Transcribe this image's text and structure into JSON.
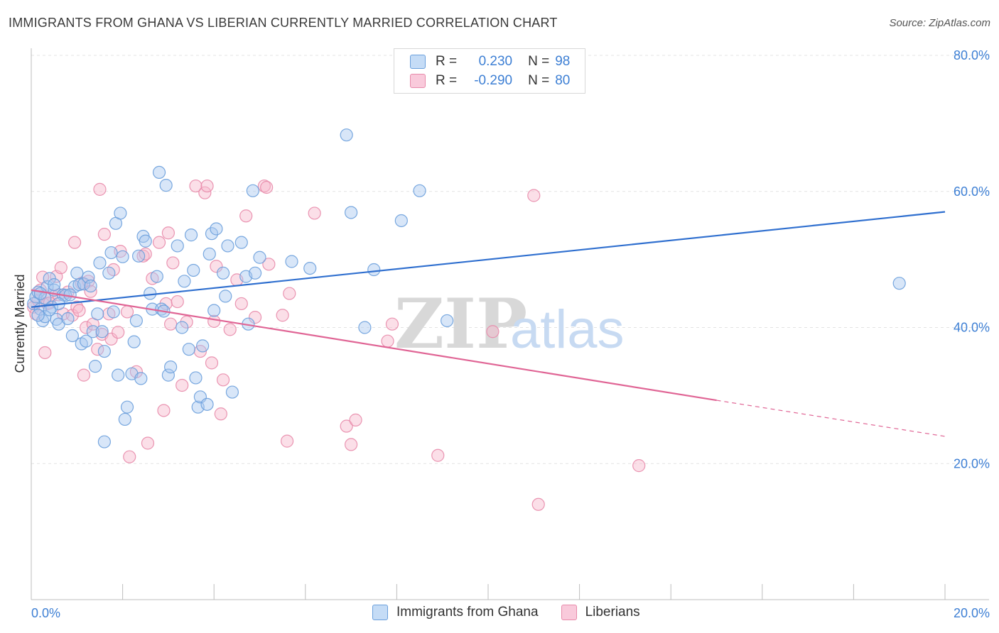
{
  "header": {
    "title": "IMMIGRANTS FROM GHANA VS LIBERIAN CURRENTLY MARRIED CORRELATION CHART",
    "source": "Source: ZipAtlas.com"
  },
  "watermark": {
    "zip": "ZIP",
    "atlas": "atlas"
  },
  "legend": {
    "rows": [
      {
        "r_label": "R =",
        "r_value": "0.230",
        "n_label": "N =",
        "n_value": "98"
      },
      {
        "r_label": "R =",
        "r_value": "-0.290",
        "n_label": "N =",
        "n_value": "80"
      }
    ]
  },
  "bottom_legend": {
    "series1": "Immigrants from Ghana",
    "series2": "Liberians"
  },
  "colors": {
    "ghana_fill": "#a9c8f0",
    "ghana_stroke": "#6a9fdc",
    "ghana_line": "#2f6fcf",
    "lib_fill": "#f6b8cc",
    "lib_stroke": "#e88aaa",
    "lib_line": "#e06595",
    "tick_text": "#3d7fd4",
    "grid": "#e3e3e3"
  },
  "chart_data": {
    "type": "scatter",
    "title": "IMMIGRANTS FROM GHANA VS LIBERIAN CURRENTLY MARRIED CORRELATION CHART",
    "xlabel": "",
    "ylabel": "Currently Married",
    "xlim": [
      0,
      20
    ],
    "ylim": [
      0,
      80
    ],
    "x_ticks": [
      "0.0%",
      "20.0%"
    ],
    "y_ticks": [
      "20.0%",
      "40.0%",
      "60.0%",
      "80.0%"
    ],
    "grid": true,
    "series": [
      {
        "name": "Immigrants from Ghana",
        "trend": {
          "x0": 0,
          "y0": 43.0,
          "x1": 20,
          "y1": 57.0
        },
        "points": [
          [
            0.05,
            43.5
          ],
          [
            0.1,
            44.5
          ],
          [
            0.15,
            45.2
          ],
          [
            0.2,
            42.7
          ],
          [
            0.25,
            41.0
          ],
          [
            0.3,
            44.3
          ],
          [
            0.35,
            46.0
          ],
          [
            0.4,
            47.2
          ],
          [
            0.45,
            43.0
          ],
          [
            0.5,
            45.5
          ],
          [
            0.55,
            41.2
          ],
          [
            0.6,
            40.5
          ],
          [
            0.7,
            44.8
          ],
          [
            0.75,
            44.7
          ],
          [
            0.8,
            41.3
          ],
          [
            0.9,
            38.8
          ],
          [
            0.95,
            46.0
          ],
          [
            1.0,
            48.0
          ],
          [
            1.05,
            46.3
          ],
          [
            1.1,
            37.6
          ],
          [
            1.15,
            46.4
          ],
          [
            1.2,
            38.0
          ],
          [
            1.25,
            47.4
          ],
          [
            1.35,
            39.4
          ],
          [
            1.4,
            34.3
          ],
          [
            1.45,
            42.0
          ],
          [
            1.5,
            49.5
          ],
          [
            1.55,
            39.4
          ],
          [
            1.6,
            36.5
          ],
          [
            1.7,
            48.0
          ],
          [
            1.75,
            51.0
          ],
          [
            1.8,
            42.3
          ],
          [
            1.85,
            55.3
          ],
          [
            1.9,
            33.0
          ],
          [
            1.95,
            56.8
          ],
          [
            2.0,
            50.4
          ],
          [
            2.1,
            28.3
          ],
          [
            2.05,
            26.5
          ],
          [
            2.2,
            33.2
          ],
          [
            2.25,
            37.9
          ],
          [
            2.3,
            41.0
          ],
          [
            2.4,
            32.5
          ],
          [
            2.45,
            53.4
          ],
          [
            2.5,
            52.7
          ],
          [
            2.6,
            45.0
          ],
          [
            2.65,
            42.7
          ],
          [
            2.75,
            47.5
          ],
          [
            2.8,
            62.8
          ],
          [
            2.85,
            42.7
          ],
          [
            2.9,
            42.4
          ],
          [
            2.95,
            60.9
          ],
          [
            3.0,
            33.0
          ],
          [
            3.05,
            34.2
          ],
          [
            3.2,
            52.0
          ],
          [
            3.3,
            40.0
          ],
          [
            3.35,
            46.8
          ],
          [
            3.45,
            36.8
          ],
          [
            3.5,
            53.6
          ],
          [
            3.55,
            48.4
          ],
          [
            3.6,
            32.6
          ],
          [
            3.65,
            28.3
          ],
          [
            3.7,
            29.8
          ],
          [
            3.75,
            37.3
          ],
          [
            3.85,
            28.7
          ],
          [
            3.9,
            50.8
          ],
          [
            3.95,
            53.8
          ],
          [
            4.0,
            42.5
          ],
          [
            4.05,
            54.5
          ],
          [
            4.2,
            48.0
          ],
          [
            4.25,
            44.6
          ],
          [
            4.3,
            52.0
          ],
          [
            4.4,
            30.5
          ],
          [
            4.6,
            52.5
          ],
          [
            4.7,
            47.5
          ],
          [
            4.75,
            40.5
          ],
          [
            4.85,
            60.1
          ],
          [
            4.9,
            48.0
          ],
          [
            5.0,
            50.3
          ],
          [
            5.7,
            49.7
          ],
          [
            6.1,
            48.7
          ],
          [
            6.9,
            68.3
          ],
          [
            7.0,
            56.9
          ],
          [
            7.3,
            40.0
          ],
          [
            7.5,
            48.5
          ],
          [
            8.1,
            55.7
          ],
          [
            8.5,
            60.1
          ],
          [
            9.1,
            41.0
          ],
          [
            19.0,
            46.5
          ],
          [
            1.6,
            23.2
          ],
          [
            0.2,
            45.0
          ],
          [
            0.3,
            41.6
          ],
          [
            0.6,
            43.5
          ],
          [
            0.85,
            44.8
          ],
          [
            1.3,
            46.1
          ],
          [
            2.35,
            50.5
          ],
          [
            0.4,
            42.6
          ],
          [
            0.15,
            41.8
          ],
          [
            0.5,
            46.3
          ]
        ]
      },
      {
        "name": "Liberians",
        "trend": {
          "x0": 0,
          "y0": 45.5,
          "x1": 15,
          "y1": 29.3
        },
        "trend_dashed": {
          "x0": 15,
          "y0": 29.3,
          "x1": 20,
          "y1": 24.0
        },
        "points": [
          [
            0.05,
            43.0
          ],
          [
            0.1,
            42.0
          ],
          [
            0.15,
            44.0
          ],
          [
            0.2,
            45.5
          ],
          [
            0.3,
            36.3
          ],
          [
            0.35,
            43.5
          ],
          [
            0.45,
            44.7
          ],
          [
            0.55,
            47.5
          ],
          [
            0.65,
            48.8
          ],
          [
            0.7,
            42.0
          ],
          [
            0.8,
            45.2
          ],
          [
            0.9,
            41.8
          ],
          [
            0.95,
            52.5
          ],
          [
            1.0,
            43.0
          ],
          [
            1.05,
            42.5
          ],
          [
            1.15,
            33.0
          ],
          [
            1.2,
            40.0
          ],
          [
            1.25,
            46.8
          ],
          [
            1.3,
            45.3
          ],
          [
            1.35,
            40.5
          ],
          [
            1.45,
            36.8
          ],
          [
            1.5,
            60.3
          ],
          [
            1.55,
            39.0
          ],
          [
            1.6,
            53.7
          ],
          [
            1.7,
            42.0
          ],
          [
            1.75,
            38.3
          ],
          [
            1.8,
            48.5
          ],
          [
            1.9,
            39.3
          ],
          [
            1.95,
            51.2
          ],
          [
            2.1,
            42.3
          ],
          [
            2.15,
            21.0
          ],
          [
            2.3,
            33.5
          ],
          [
            2.45,
            50.5
          ],
          [
            2.5,
            50.8
          ],
          [
            2.55,
            23.0
          ],
          [
            2.65,
            47.2
          ],
          [
            2.8,
            52.5
          ],
          [
            2.9,
            27.8
          ],
          [
            2.95,
            43.5
          ],
          [
            3.0,
            53.9
          ],
          [
            3.05,
            40.5
          ],
          [
            3.1,
            49.5
          ],
          [
            3.3,
            31.5
          ],
          [
            3.4,
            40.8
          ],
          [
            3.6,
            60.8
          ],
          [
            3.7,
            36.5
          ],
          [
            3.8,
            59.8
          ],
          [
            3.85,
            60.8
          ],
          [
            3.95,
            34.8
          ],
          [
            4.0,
            40.9
          ],
          [
            4.05,
            49.0
          ],
          [
            4.15,
            27.3
          ],
          [
            4.2,
            32.3
          ],
          [
            4.35,
            39.7
          ],
          [
            4.5,
            47.0
          ],
          [
            4.6,
            43.5
          ],
          [
            4.7,
            56.4
          ],
          [
            4.9,
            41.5
          ],
          [
            5.1,
            60.8
          ],
          [
            5.15,
            60.6
          ],
          [
            5.2,
            49.3
          ],
          [
            5.5,
            41.8
          ],
          [
            5.6,
            23.3
          ],
          [
            5.65,
            45.0
          ],
          [
            6.2,
            56.8
          ],
          [
            6.9,
            25.5
          ],
          [
            7.0,
            22.8
          ],
          [
            7.1,
            26.4
          ],
          [
            7.8,
            38.0
          ],
          [
            7.9,
            40.5
          ],
          [
            8.9,
            21.2
          ],
          [
            10.1,
            39.4
          ],
          [
            11.0,
            59.4
          ],
          [
            11.1,
            14.0
          ],
          [
            13.3,
            19.7
          ],
          [
            0.4,
            43.6
          ],
          [
            1.1,
            46.5
          ],
          [
            0.25,
            47.4
          ],
          [
            0.6,
            44.8
          ],
          [
            3.2,
            43.8
          ]
        ]
      }
    ]
  }
}
